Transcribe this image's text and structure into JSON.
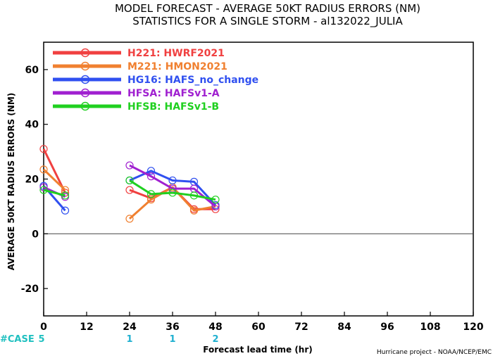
{
  "chart_data": {
    "type": "line",
    "title": "MODEL FORECAST - AVERAGE 50KT RADIUS ERRORS (NM)",
    "subtitle": "STATISTICS FOR A SINGLE STORM - al132022_JULIA",
    "xlabel": "Forecast lead time (hr)",
    "ylabel": "AVERAGE 50KT RADIUS ERRORS (NM)",
    "xlim": [
      0,
      120
    ],
    "ylim": [
      -30,
      70
    ],
    "xticks": [
      0,
      12,
      24,
      36,
      48,
      60,
      72,
      84,
      96,
      108,
      120
    ],
    "yticks": [
      -20,
      0,
      20,
      40,
      60
    ],
    "x": [
      0,
      6,
      24,
      30,
      36,
      42,
      48
    ],
    "series": [
      {
        "name": "H221: HWRF2021",
        "color": "#f04040",
        "values": [
          31,
          15,
          null,
          null,
          null,
          null,
          null
        ],
        "values2": [
          null,
          null,
          16,
          13,
          17,
          9,
          9
        ]
      },
      {
        "name": "M221: HMON2021",
        "color": "#f08030",
        "values": [
          23.5,
          16,
          null,
          null,
          null,
          null,
          null
        ],
        "values2": [
          null,
          null,
          5.5,
          12.5,
          17,
          8.5,
          10
        ]
      },
      {
        "name": "HG16: HAFS_no_change",
        "color": "#3050f0",
        "values": [
          17.5,
          8.5,
          null,
          null,
          null,
          null,
          null
        ],
        "values2": [
          null,
          null,
          19.5,
          23,
          19.5,
          19,
          10.5
        ]
      },
      {
        "name": "HFSA: HAFSv1-A",
        "color": "#a020d0",
        "values": [
          17,
          13.5,
          null,
          null,
          null,
          null,
          null
        ],
        "values2": [
          null,
          null,
          25,
          21,
          16.5,
          16.5,
          10
        ]
      },
      {
        "name": "HFSB: HAFSv1-B",
        "color": "#20d020",
        "values": [
          16,
          14,
          null,
          null,
          null,
          null,
          null
        ],
        "values2": [
          null,
          null,
          19.5,
          14.5,
          15,
          14,
          12.5
        ]
      }
    ],
    "case_label": "#CASE",
    "case_counts": [
      {
        "x": 0,
        "n": "5",
        "color": "#20c0c0"
      },
      {
        "x": 24,
        "n": "1",
        "color": "#20b0d0"
      },
      {
        "x": 36,
        "n": "1",
        "color": "#20b0d0"
      },
      {
        "x": 48,
        "n": "2",
        "color": "#20b0d0"
      }
    ],
    "case_label_color": "#20c0c0",
    "credit": "Hurricane project - NOAA/NCEP/EMC",
    "legend_position": "top-left",
    "grid": false
  }
}
